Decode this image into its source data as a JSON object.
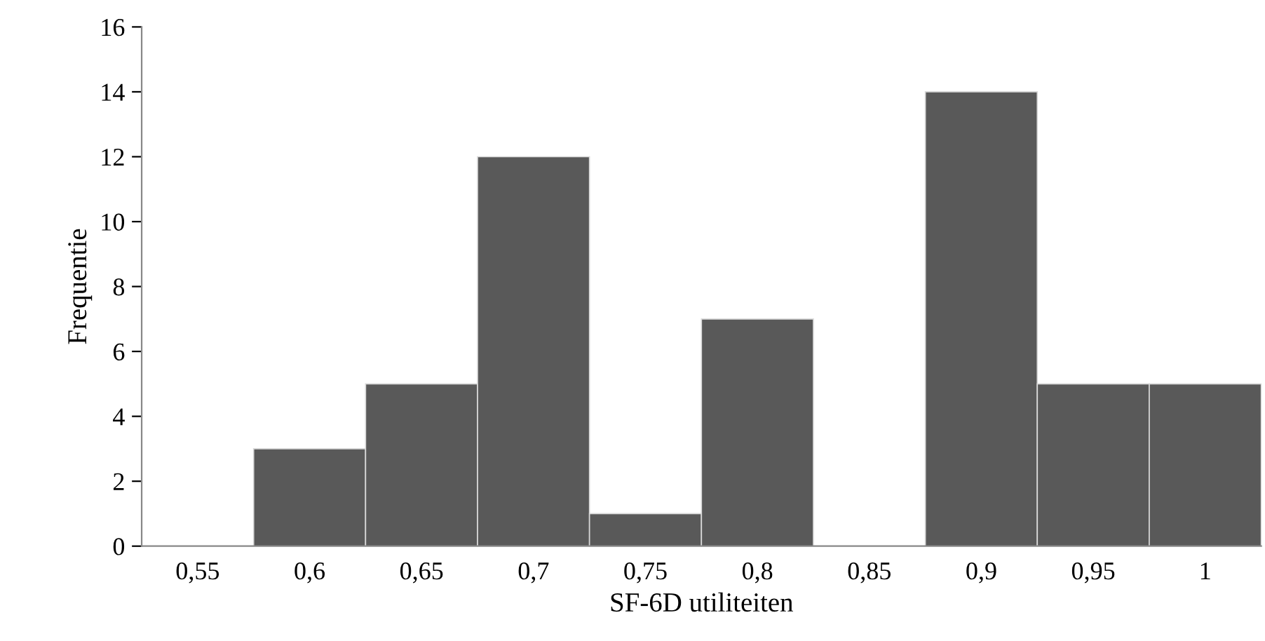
{
  "chart_data": {
    "type": "bar",
    "xlabel": "SF-6D utiliteiten",
    "ylabel": "Frequentie",
    "categories": [
      "0,55",
      "0,6",
      "0,65",
      "0,7",
      "0,75",
      "0,8",
      "0,85",
      "0,9",
      "0,95",
      "1"
    ],
    "values": [
      0,
      3,
      5,
      12,
      1,
      7,
      0,
      14,
      5,
      5
    ],
    "color": "#595959",
    "ylim": [
      0,
      16
    ],
    "yticks": [
      0,
      2,
      4,
      6,
      8,
      10,
      12,
      14,
      16
    ],
    "grid": false,
    "legend": false
  }
}
